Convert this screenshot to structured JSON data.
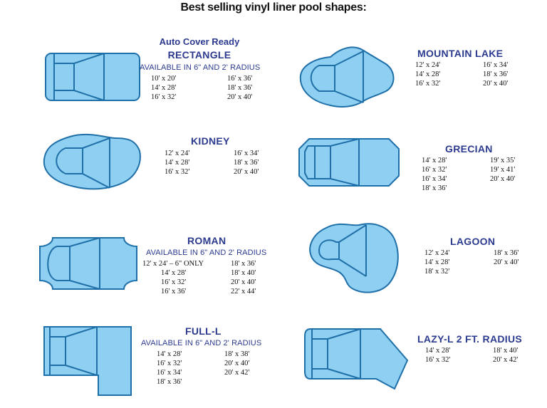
{
  "title": "Best selling vinyl liner pool shapes:",
  "colors": {
    "water": "#8fd0f2",
    "outline": "#1f6fa8",
    "label": "#2c3b8f"
  },
  "shapes": {
    "rectangle": {
      "pre": "Auto Cover Ready",
      "name": "RECTANGLE",
      "sub": "AVAILABLE IN 6\" AND 2' RADIUS",
      "col1": [
        "10' x 20'",
        "14' x 28'",
        "16' x 32'"
      ],
      "col2": [
        "16' x 36'",
        "18' x 36'",
        "20' x 40'"
      ]
    },
    "mountain_lake": {
      "name": "MOUNTAIN LAKE",
      "col1": [
        "12' x 24'",
        "14' x 28'",
        "16' x 32'"
      ],
      "col2": [
        "16' x 34'",
        "18' x 36'",
        "20' x 40'"
      ]
    },
    "kidney": {
      "name": "KIDNEY",
      "col1": [
        "12' x 24'",
        "14' x 28'",
        "16' x 32'"
      ],
      "col2": [
        "16' x 34'",
        "18' x 36'",
        "20' x 40'"
      ]
    },
    "grecian": {
      "name": "GRECIAN",
      "col1": [
        "14' x 28'",
        "16' x 32'",
        "16' x 34'",
        "18' x 36'"
      ],
      "col2": [
        "19' x 35'",
        "19' x 41'",
        "20' x 40'"
      ]
    },
    "roman": {
      "name": "ROMAN",
      "sub": "AVAILABLE IN 6\" AND 2' RADIUS",
      "col1": [
        "12' x 24' – 6\" ONLY",
        "14' x 28'",
        "16' x 32'",
        "16' x 36'"
      ],
      "col2": [
        "18' x 36'",
        "18' x 40'",
        "20' x 40'",
        "22' x 44'"
      ]
    },
    "lagoon": {
      "name": "LAGOON",
      "col1": [
        "12' x 24'",
        "14' x 28'",
        "18' x 32'"
      ],
      "col2": [
        "18' x 36'",
        "20' x 40'"
      ]
    },
    "full_l": {
      "name": "FULL-L",
      "sub": "AVAILABLE IN 6\" AND 2' RADIUS",
      "col1": [
        "14' x 28'",
        "16' x 32'",
        "16' x 34'",
        "18' x 36'"
      ],
      "col2": [
        "18' x 38'",
        "20' x 40'",
        "20' x 42'"
      ]
    },
    "lazy_l": {
      "name": "LAZY-L 2 FT. RADIUS",
      "col1": [
        "14' x 28'",
        "16' x 32'"
      ],
      "col2": [
        "18' x 40'",
        "20' x 42'"
      ]
    }
  }
}
